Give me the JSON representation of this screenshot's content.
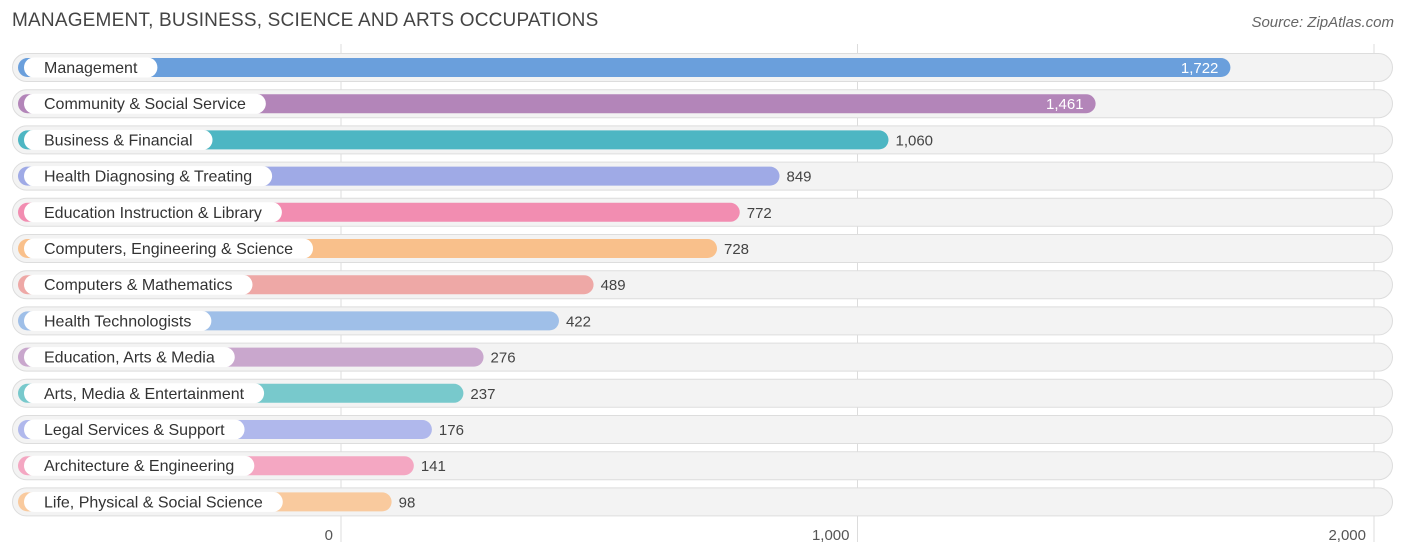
{
  "header": {
    "title": "MANAGEMENT, BUSINESS, SCIENCE AND ARTS OCCUPATIONS",
    "source": "Source: ZipAtlas.com"
  },
  "chart_data": {
    "type": "bar",
    "orientation": "horizontal",
    "title": "MANAGEMENT, BUSINESS, SCIENCE AND ARTS OCCUPATIONS",
    "categories": [
      "Management",
      "Community & Social Service",
      "Business & Financial",
      "Health Diagnosing & Treating",
      "Education Instruction & Library",
      "Computers, Engineering & Science",
      "Computers & Mathematics",
      "Health Technologists",
      "Education, Arts & Media",
      "Arts, Media & Entertainment",
      "Legal Services & Support",
      "Architecture & Engineering",
      "Life, Physical & Social Science"
    ],
    "values": [
      1722,
      1461,
      1060,
      849,
      772,
      728,
      489,
      422,
      276,
      237,
      176,
      141,
      98
    ],
    "value_labels": [
      "1,722",
      "1,461",
      "1,060",
      "849",
      "772",
      "728",
      "489",
      "422",
      "276",
      "237",
      "176",
      "141",
      "98"
    ],
    "colors": [
      "#6a9fdc",
      "#b385b9",
      "#4db6c3",
      "#9faae6",
      "#f28db1",
      "#f9c08b",
      "#eea8a6",
      "#9fbfe8",
      "#c9a7cd",
      "#78c9cc",
      "#b0b8ec",
      "#f4a7c2",
      "#f9ca9e"
    ],
    "xlim": [
      0,
      2000
    ],
    "ticks": [
      0,
      1000,
      2000
    ],
    "tick_labels": [
      "0",
      "1,000",
      "2,000"
    ],
    "grid": true,
    "xlabel": "",
    "ylabel": ""
  }
}
